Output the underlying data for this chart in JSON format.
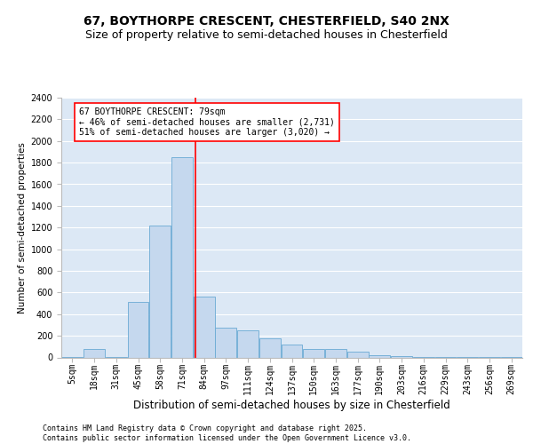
{
  "title1": "67, BOYTHORPE CRESCENT, CHESTERFIELD, S40 2NX",
  "title2": "Size of property relative to semi-detached houses in Chesterfield",
  "xlabel": "Distribution of semi-detached houses by size in Chesterfield",
  "ylabel": "Number of semi-detached properties",
  "footer": "Contains HM Land Registry data © Crown copyright and database right 2025.\nContains public sector information licensed under the Open Government Licence v3.0.",
  "bin_labels": [
    "5sqm",
    "18sqm",
    "31sqm",
    "45sqm",
    "58sqm",
    "71sqm",
    "84sqm",
    "97sqm",
    "111sqm",
    "124sqm",
    "137sqm",
    "150sqm",
    "163sqm",
    "177sqm",
    "190sqm",
    "203sqm",
    "216sqm",
    "229sqm",
    "243sqm",
    "256sqm",
    "269sqm"
  ],
  "bar_values": [
    8,
    80,
    5,
    510,
    1220,
    1850,
    560,
    275,
    250,
    175,
    120,
    80,
    80,
    50,
    20,
    10,
    5,
    5,
    3,
    2,
    2
  ],
  "bar_color": "#c5d8ee",
  "bar_edge_color": "#6aaad4",
  "background_color": "#dce8f5",
  "grid_color": "#ffffff",
  "annotation_line1": "67 BOYTHORPE CRESCENT: 79sqm",
  "annotation_line2": "← 46% of semi-detached houses are smaller (2,731)",
  "annotation_line3": "51% of semi-detached houses are larger (3,020) →",
  "ylim": [
    0,
    2400
  ],
  "yticks": [
    0,
    200,
    400,
    600,
    800,
    1000,
    1200,
    1400,
    1600,
    1800,
    2000,
    2200,
    2400
  ],
  "title1_fontsize": 10,
  "title2_fontsize": 9,
  "xlabel_fontsize": 8.5,
  "ylabel_fontsize": 7.5,
  "tick_fontsize": 7,
  "annotation_fontsize": 7,
  "footer_fontsize": 6
}
